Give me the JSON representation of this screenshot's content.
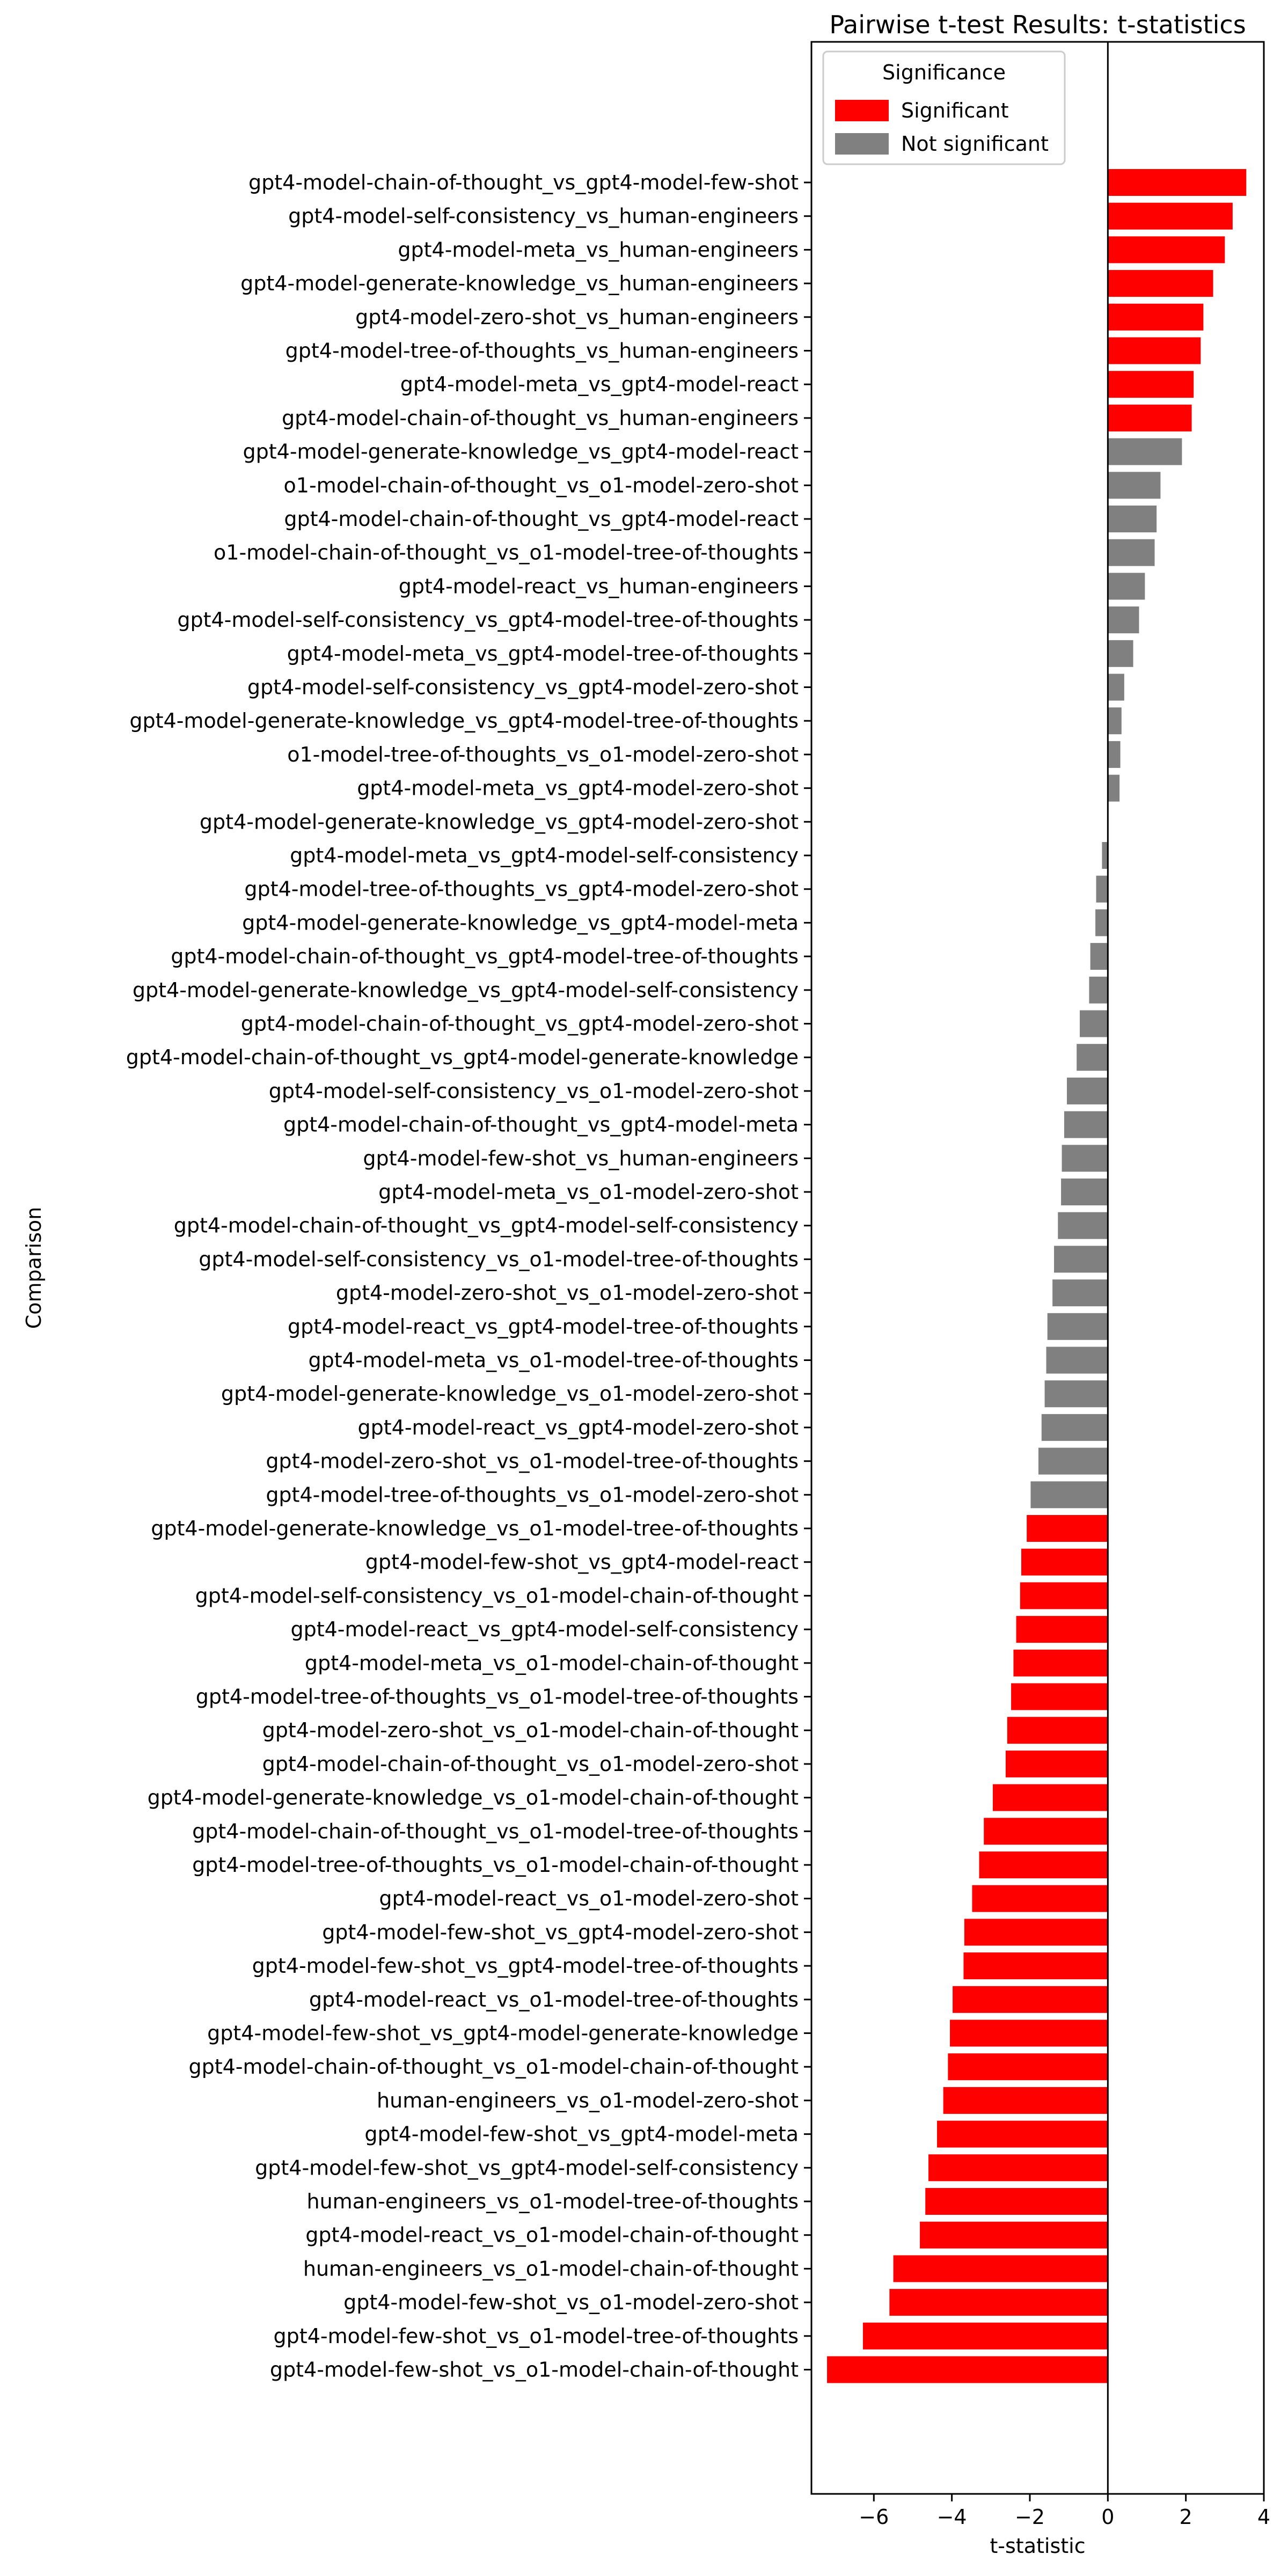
{
  "chart_data": {
    "type": "bar",
    "orientation": "horizontal",
    "title": "Pairwise t-test Results: t-statistics",
    "xlabel": "t-statistic",
    "ylabel": "Comparison",
    "xlim": [
      -7.6,
      4.0
    ],
    "xticks": [
      -6,
      -4,
      -2,
      0,
      2,
      4
    ],
    "xtick_labels": [
      "−6",
      "−4",
      "−2",
      "0",
      "2",
      "4"
    ],
    "reference_line": 0,
    "grid": false,
    "legend": {
      "title": "Significance",
      "placement": "top-left",
      "entries": [
        {
          "label": "Significant",
          "color": "#ff0000"
        },
        {
          "label": "Not significant",
          "color": "#808080"
        }
      ]
    },
    "colors": {
      "significant": "#ff0000",
      "not_significant": "#808080"
    },
    "bars": [
      {
        "label": "gpt4-model-chain-of-thought_vs_gpt4-model-few-shot",
        "value": 3.55,
        "significant": true
      },
      {
        "label": "gpt4-model-self-consistency_vs_human-engineers",
        "value": 3.2,
        "significant": true
      },
      {
        "label": "gpt4-model-meta_vs_human-engineers",
        "value": 3.0,
        "significant": true
      },
      {
        "label": "gpt4-model-generate-knowledge_vs_human-engineers",
        "value": 2.7,
        "significant": true
      },
      {
        "label": "gpt4-model-zero-shot_vs_human-engineers",
        "value": 2.45,
        "significant": true
      },
      {
        "label": "gpt4-model-tree-of-thoughts_vs_human-engineers",
        "value": 2.38,
        "significant": true
      },
      {
        "label": "gpt4-model-meta_vs_gpt4-model-react",
        "value": 2.2,
        "significant": true
      },
      {
        "label": "gpt4-model-chain-of-thought_vs_human-engineers",
        "value": 2.15,
        "significant": true
      },
      {
        "label": "gpt4-model-generate-knowledge_vs_gpt4-model-react",
        "value": 1.9,
        "significant": false
      },
      {
        "label": "o1-model-chain-of-thought_vs_o1-model-zero-shot",
        "value": 1.35,
        "significant": false
      },
      {
        "label": "gpt4-model-chain-of-thought_vs_gpt4-model-react",
        "value": 1.25,
        "significant": false
      },
      {
        "label": "o1-model-chain-of-thought_vs_o1-model-tree-of-thoughts",
        "value": 1.2,
        "significant": false
      },
      {
        "label": "gpt4-model-react_vs_human-engineers",
        "value": 0.95,
        "significant": false
      },
      {
        "label": "gpt4-model-self-consistency_vs_gpt4-model-tree-of-thoughts",
        "value": 0.8,
        "significant": false
      },
      {
        "label": "gpt4-model-meta_vs_gpt4-model-tree-of-thoughts",
        "value": 0.65,
        "significant": false
      },
      {
        "label": "gpt4-model-self-consistency_vs_gpt4-model-zero-shot",
        "value": 0.42,
        "significant": false
      },
      {
        "label": "gpt4-model-generate-knowledge_vs_gpt4-model-tree-of-thoughts",
        "value": 0.35,
        "significant": false
      },
      {
        "label": "o1-model-tree-of-thoughts_vs_o1-model-zero-shot",
        "value": 0.32,
        "significant": false
      },
      {
        "label": "gpt4-model-meta_vs_gpt4-model-zero-shot",
        "value": 0.3,
        "significant": false
      },
      {
        "label": "gpt4-model-generate-knowledge_vs_gpt4-model-zero-shot",
        "value": 0.0,
        "significant": false
      },
      {
        "label": "gpt4-model-meta_vs_gpt4-model-self-consistency",
        "value": -0.15,
        "significant": false
      },
      {
        "label": "gpt4-model-tree-of-thoughts_vs_gpt4-model-zero-shot",
        "value": -0.3,
        "significant": false
      },
      {
        "label": "gpt4-model-generate-knowledge_vs_gpt4-model-meta",
        "value": -0.32,
        "significant": false
      },
      {
        "label": "gpt4-model-chain-of-thought_vs_gpt4-model-tree-of-thoughts",
        "value": -0.45,
        "significant": false
      },
      {
        "label": "gpt4-model-generate-knowledge_vs_gpt4-model-self-consistency",
        "value": -0.48,
        "significant": false
      },
      {
        "label": "gpt4-model-chain-of-thought_vs_gpt4-model-zero-shot",
        "value": -0.72,
        "significant": false
      },
      {
        "label": "gpt4-model-chain-of-thought_vs_gpt4-model-generate-knowledge",
        "value": -0.8,
        "significant": false
      },
      {
        "label": "gpt4-model-self-consistency_vs_o1-model-zero-shot",
        "value": -1.05,
        "significant": false
      },
      {
        "label": "gpt4-model-chain-of-thought_vs_gpt4-model-meta",
        "value": -1.12,
        "significant": false
      },
      {
        "label": "gpt4-model-few-shot_vs_human-engineers",
        "value": -1.18,
        "significant": false
      },
      {
        "label": "gpt4-model-meta_vs_o1-model-zero-shot",
        "value": -1.2,
        "significant": false
      },
      {
        "label": "gpt4-model-chain-of-thought_vs_gpt4-model-self-consistency",
        "value": -1.28,
        "significant": false
      },
      {
        "label": "gpt4-model-self-consistency_vs_o1-model-tree-of-thoughts",
        "value": -1.38,
        "significant": false
      },
      {
        "label": "gpt4-model-zero-shot_vs_o1-model-zero-shot",
        "value": -1.42,
        "significant": false
      },
      {
        "label": "gpt4-model-react_vs_gpt4-model-tree-of-thoughts",
        "value": -1.55,
        "significant": false
      },
      {
        "label": "gpt4-model-meta_vs_o1-model-tree-of-thoughts",
        "value": -1.58,
        "significant": false
      },
      {
        "label": "gpt4-model-generate-knowledge_vs_o1-model-zero-shot",
        "value": -1.62,
        "significant": false
      },
      {
        "label": "gpt4-model-react_vs_gpt4-model-zero-shot",
        "value": -1.7,
        "significant": false
      },
      {
        "label": "gpt4-model-zero-shot_vs_o1-model-tree-of-thoughts",
        "value": -1.78,
        "significant": false
      },
      {
        "label": "gpt4-model-tree-of-thoughts_vs_o1-model-zero-shot",
        "value": -1.98,
        "significant": false
      },
      {
        "label": "gpt4-model-generate-knowledge_vs_o1-model-tree-of-thoughts",
        "value": -2.08,
        "significant": true
      },
      {
        "label": "gpt4-model-few-shot_vs_gpt4-model-react",
        "value": -2.22,
        "significant": true
      },
      {
        "label": "gpt4-model-self-consistency_vs_o1-model-chain-of-thought",
        "value": -2.25,
        "significant": true
      },
      {
        "label": "gpt4-model-react_vs_gpt4-model-self-consistency",
        "value": -2.35,
        "significant": true
      },
      {
        "label": "gpt4-model-meta_vs_o1-model-chain-of-thought",
        "value": -2.42,
        "significant": true
      },
      {
        "label": "gpt4-model-tree-of-thoughts_vs_o1-model-tree-of-thoughts",
        "value": -2.48,
        "significant": true
      },
      {
        "label": "gpt4-model-zero-shot_vs_o1-model-chain-of-thought",
        "value": -2.58,
        "significant": true
      },
      {
        "label": "gpt4-model-chain-of-thought_vs_o1-model-zero-shot",
        "value": -2.62,
        "significant": true
      },
      {
        "label": "gpt4-model-generate-knowledge_vs_o1-model-chain-of-thought",
        "value": -2.95,
        "significant": true
      },
      {
        "label": "gpt4-model-chain-of-thought_vs_o1-model-tree-of-thoughts",
        "value": -3.18,
        "significant": true
      },
      {
        "label": "gpt4-model-tree-of-thoughts_vs_o1-model-chain-of-thought",
        "value": -3.3,
        "significant": true
      },
      {
        "label": "gpt4-model-react_vs_o1-model-zero-shot",
        "value": -3.48,
        "significant": true
      },
      {
        "label": "gpt4-model-few-shot_vs_gpt4-model-zero-shot",
        "value": -3.68,
        "significant": true
      },
      {
        "label": "gpt4-model-few-shot_vs_gpt4-model-tree-of-thoughts",
        "value": -3.7,
        "significant": true
      },
      {
        "label": "gpt4-model-react_vs_o1-model-tree-of-thoughts",
        "value": -3.98,
        "significant": true
      },
      {
        "label": "gpt4-model-few-shot_vs_gpt4-model-generate-knowledge",
        "value": -4.05,
        "significant": true
      },
      {
        "label": "gpt4-model-chain-of-thought_vs_o1-model-chain-of-thought",
        "value": -4.1,
        "significant": true
      },
      {
        "label": "human-engineers_vs_o1-model-zero-shot",
        "value": -4.22,
        "significant": true
      },
      {
        "label": "gpt4-model-few-shot_vs_gpt4-model-meta",
        "value": -4.38,
        "significant": true
      },
      {
        "label": "gpt4-model-few-shot_vs_gpt4-model-self-consistency",
        "value": -4.6,
        "significant": true
      },
      {
        "label": "human-engineers_vs_o1-model-tree-of-thoughts",
        "value": -4.68,
        "significant": true
      },
      {
        "label": "gpt4-model-react_vs_o1-model-chain-of-thought",
        "value": -4.82,
        "significant": true
      },
      {
        "label": "human-engineers_vs_o1-model-chain-of-thought",
        "value": -5.5,
        "significant": true
      },
      {
        "label": "gpt4-model-few-shot_vs_o1-model-zero-shot",
        "value": -5.6,
        "significant": true
      },
      {
        "label": "gpt4-model-few-shot_vs_o1-model-tree-of-thoughts",
        "value": -6.28,
        "significant": true
      },
      {
        "label": "gpt4-model-few-shot_vs_o1-model-chain-of-thought",
        "value": -7.2,
        "significant": true
      }
    ]
  }
}
